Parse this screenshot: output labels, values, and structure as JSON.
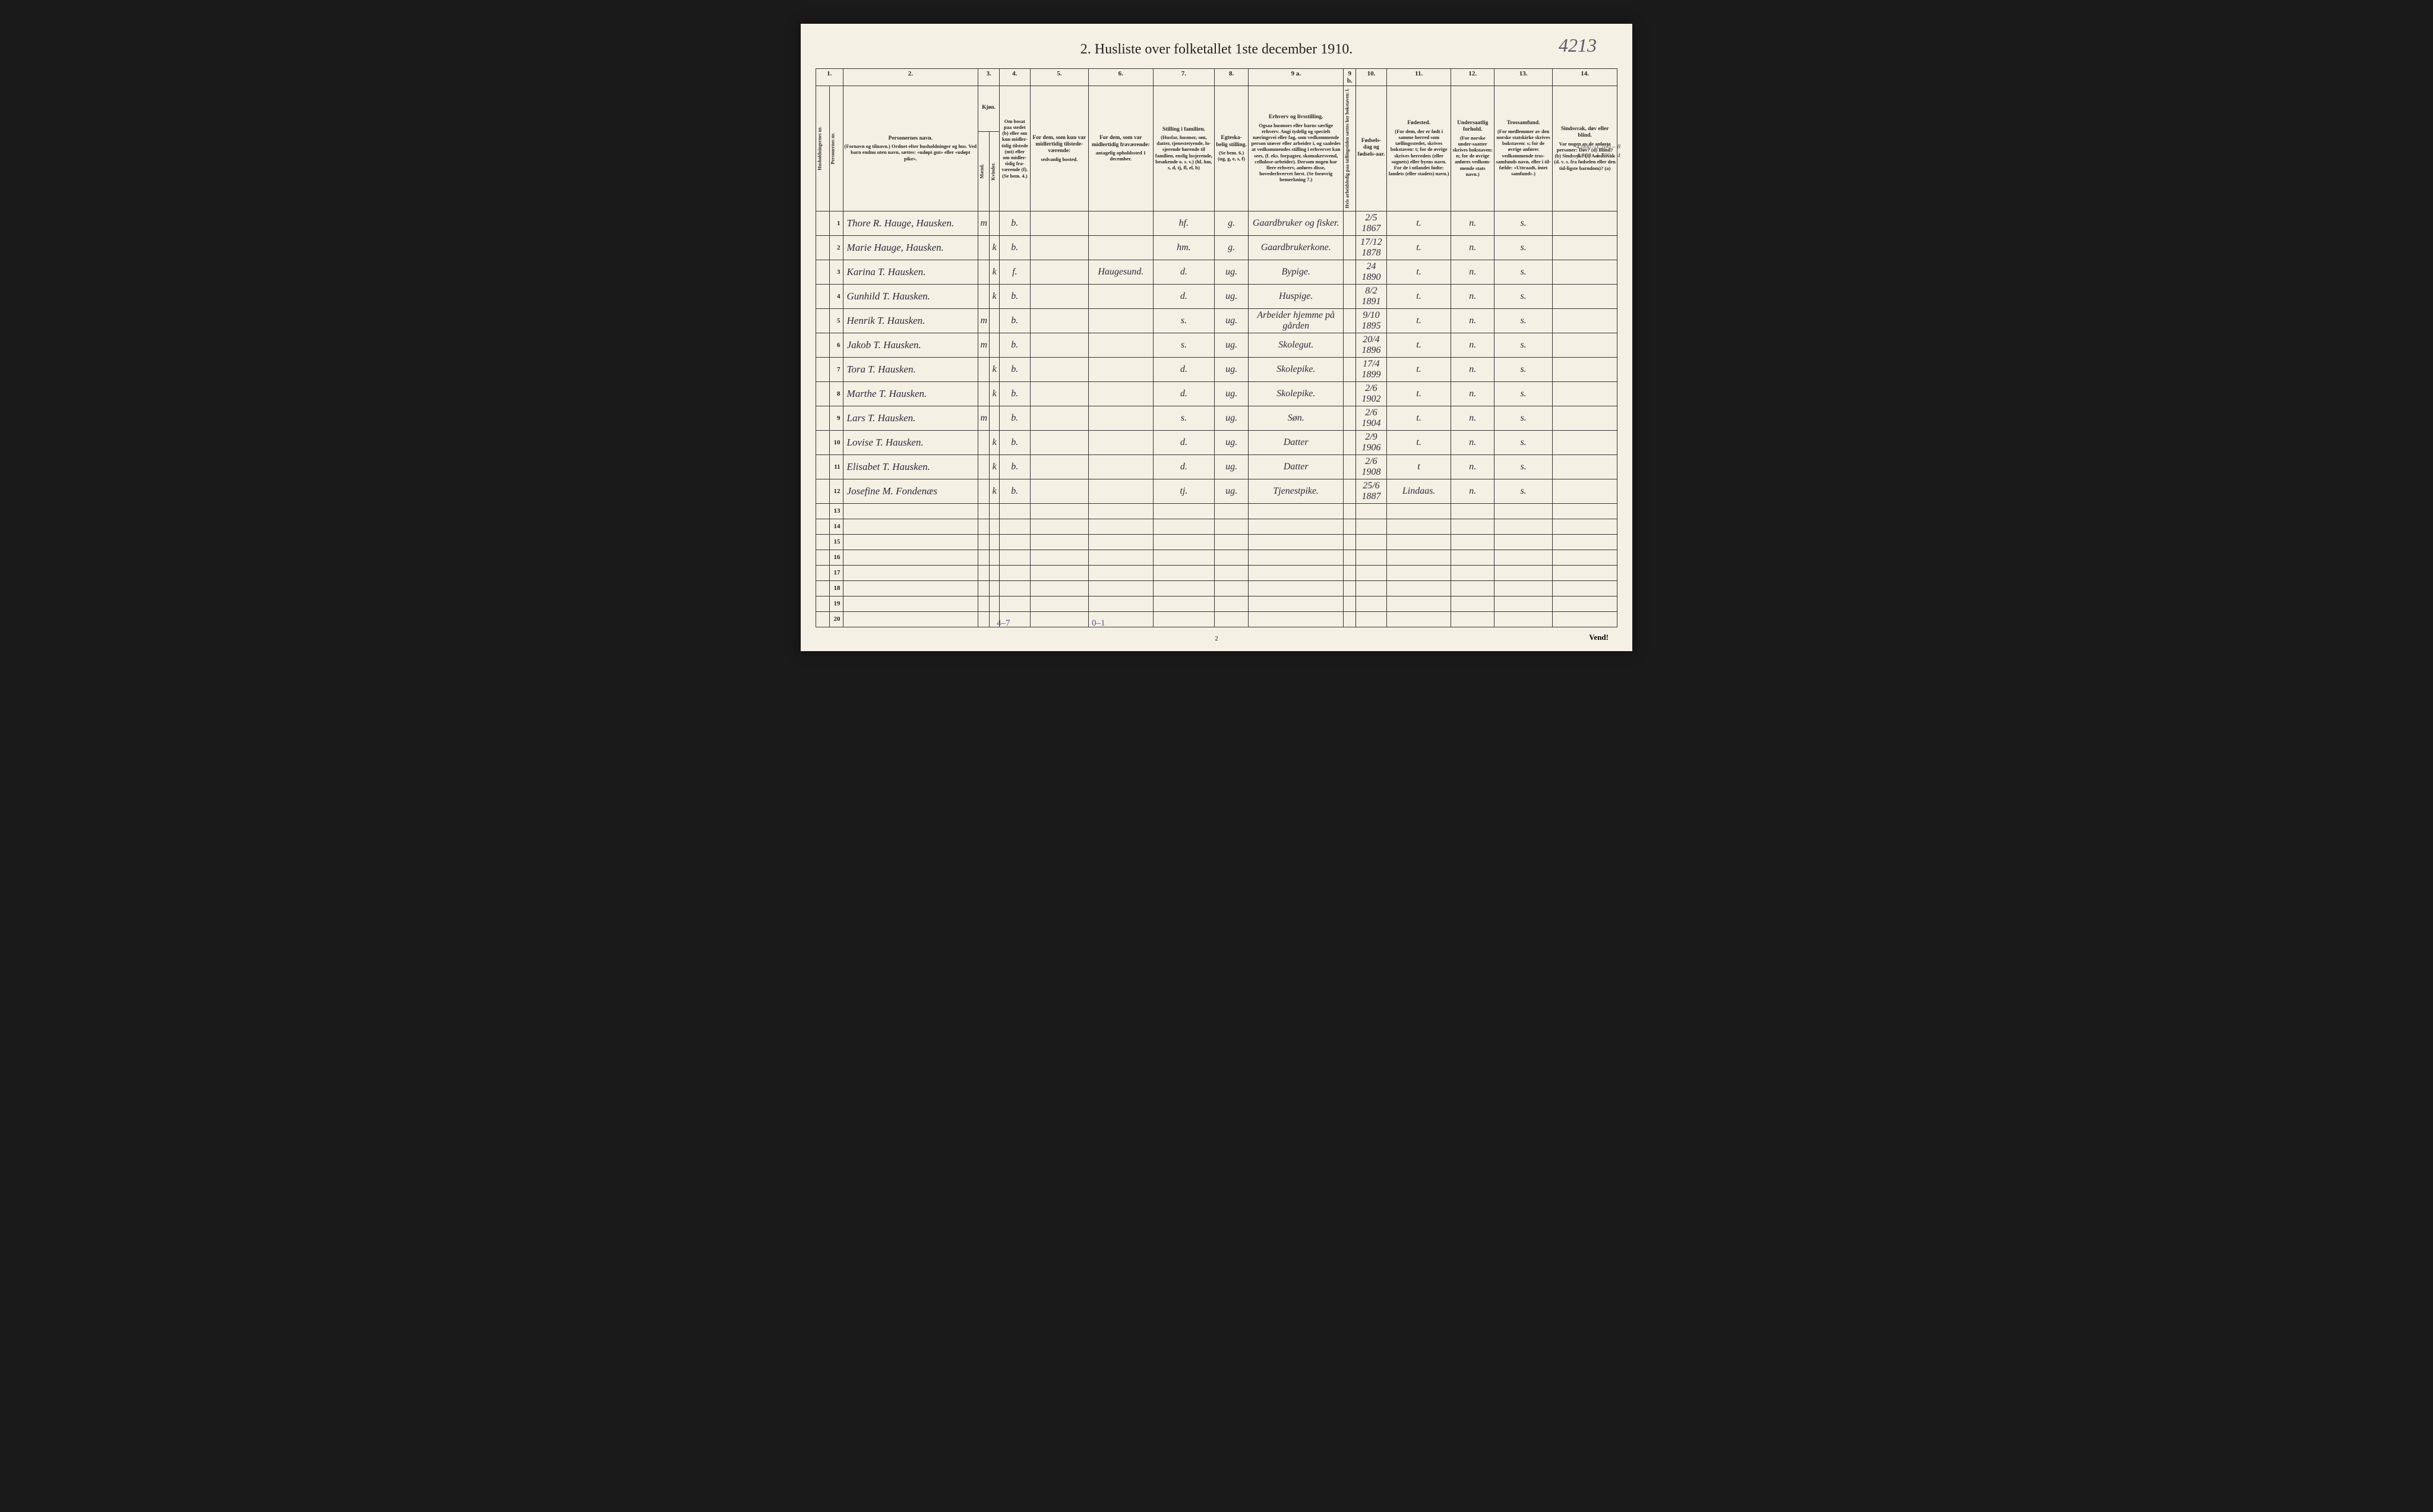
{
  "document": {
    "page_number_handwritten": "4213",
    "title": "2.   Husliste over folketallet 1ste december 1910.",
    "bottom_page_num": "2",
    "vend_label": "Vend!",
    "footer_note_left": "4–7",
    "footer_note_mid": "0–1",
    "margin_note_top": "4.000 –1.700 – 8",
    "margin_note_bottom": "4.000 –1.700 – 4"
  },
  "column_numbers": [
    "1.",
    "2.",
    "3.",
    "4.",
    "5.",
    "6.",
    "7.",
    "8.",
    "9 a.",
    "9 b.",
    "10.",
    "11.",
    "12.",
    "13.",
    "14."
  ],
  "headers": {
    "c1_vert": "Husholdningernes nr.",
    "c2_vert": "Personernes nr.",
    "c3": {
      "main": "Personernes navn.",
      "sub": "(Fornavn og tilnavn.)\nOrdnet efter husholdninger og hus.\nVed barn endnu uten navn, sættes: «udøpt gut» eller «udøpt pike»."
    },
    "c4": {
      "main": "Kjøn.",
      "m": "Mænd.",
      "k": "Kvinder.",
      "mk": "m. k."
    },
    "c5": {
      "main": "Om bosat paa stedet (b) eller om kun midler-tidig tilstede (mt) eller om midler-tidig fra-værende (f).",
      "sub": "(Se bem. 4.)"
    },
    "c6": {
      "main": "For dem, som kun var midlertidig tilstede-værende:",
      "sub": "sedvanlig bosted."
    },
    "c7": {
      "main": "For dem, som var midlertidig fraværende:",
      "sub": "antagelig opholdssted 1 december."
    },
    "c8": {
      "main": "Stilling i familien.",
      "sub": "(Husfar, husmor, søn, datter, tjenestetyende, lo-sjerende hørende til familien, enslig losjerende, besøkende o. s. v.)\n(hf, hm, s, d, tj, fl, el, b)"
    },
    "c9": {
      "main": "Egteska-belig stilling.",
      "sub": "(Se bem. 6.)\n(ug, g, e, s, f)"
    },
    "c10": {
      "main": "Erhverv og livsstilling.",
      "sub": "Ogsaa husmors eller barns særlige erhverv. Angi tydelig og specielt næringsvei eller fag, som vedkommende person utøver eller arbeider i, og saaledes at vedkommendes stilling i erhvervet kan sees, (f. eks. forpagter, skomakersvend, cellulose-arbeider). Dersom nogen har flere erhverv, anføres disse, hovederhvervet først.\n(Se forøvrig bemerkning 7.)"
    },
    "c10b_vert": "Hvis arbeidsledig paa tællingstiden sættes her bokstaven: l.",
    "c11": {
      "main": "Fødsels-dag og fødsels-aar."
    },
    "c12": {
      "main": "Fødested.",
      "sub": "(For dem, der er født i samme herred som tællingsstedet, skrives bokstaven: t; for de øvrige skrives herredets (eller sognets) eller byens navn. For de i utlandet fødte: landets (eller stadets) navn.)"
    },
    "c13": {
      "main": "Undersaatlig forhold.",
      "sub": "(For norske under-saatter skrives bokstaven: n; for de øvrige anføres vedkom-mende stats navn.)"
    },
    "c14": {
      "main": "Trossamfund.",
      "sub": "(For medlemmer av den norske statskirke skrives bokstaven: s; for de øvrige anføres vedkommende tros-samfunds navn, eller i til-fælde: «Uttraadt, intet samfund».)"
    },
    "c15": {
      "main": "Sindssvak, døv eller blind.",
      "sub": "Var nogen av de anførte personer:\nDøv?        (d)\nBlind?      (b)\nSindssyk?  (s)\nAandssvak (d. v. s. fra fødselen eller den tid-ligste barndom)?  (a)"
    }
  },
  "rows": [
    {
      "n": "1",
      "name": "Thore R. Hauge, Hausken.",
      "sex": "m",
      "res": "b.",
      "away": "",
      "absent": "",
      "fam": "hf.",
      "mar": "g.",
      "occ": "Gaardbruker og fisker.",
      "born": "2/5 1867",
      "bplace": "t.",
      "nat": "n.",
      "rel": "s."
    },
    {
      "n": "2",
      "name": "Marie Hauge, Hausken.",
      "sex": "k",
      "res": "b.",
      "away": "",
      "absent": "",
      "fam": "hm.",
      "mar": "g.",
      "occ": "Gaardbrukerkone.",
      "born": "17/12 1878",
      "bplace": "t.",
      "nat": "n.",
      "rel": "s."
    },
    {
      "n": "3",
      "name": "Karina T. Hausken.",
      "sex": "k",
      "res": "f.",
      "away": "",
      "absent": "Haugesund.",
      "fam": "d.",
      "mar": "ug.",
      "occ": "Bypige.",
      "born": "24 1890",
      "bplace": "t.",
      "nat": "n.",
      "rel": "s."
    },
    {
      "n": "4",
      "name": "Gunhild T. Hausken.",
      "sex": "k",
      "res": "b.",
      "away": "",
      "absent": "",
      "fam": "d.",
      "mar": "ug.",
      "occ": "Huspige.",
      "born": "8/2 1891",
      "bplace": "t.",
      "nat": "n.",
      "rel": "s."
    },
    {
      "n": "5",
      "name": "Henrik T. Hausken.",
      "sex": "m",
      "res": "b.",
      "away": "",
      "absent": "",
      "fam": "s.",
      "mar": "ug.",
      "occ": "Arbeider hjemme på gården",
      "born": "9/10 1895",
      "bplace": "t.",
      "nat": "n.",
      "rel": "s."
    },
    {
      "n": "6",
      "name": "Jakob T. Hausken.",
      "sex": "m",
      "res": "b.",
      "away": "",
      "absent": "",
      "fam": "s.",
      "mar": "ug.",
      "occ": "Skolegut.",
      "born": "20/4 1896",
      "bplace": "t.",
      "nat": "n.",
      "rel": "s."
    },
    {
      "n": "7",
      "name": "Tora T. Hausken.",
      "sex": "k",
      "res": "b.",
      "away": "",
      "absent": "",
      "fam": "d.",
      "mar": "ug.",
      "occ": "Skolepike.",
      "born": "17/4 1899",
      "bplace": "t.",
      "nat": "n.",
      "rel": "s."
    },
    {
      "n": "8",
      "name": "Marthe T. Hausken.",
      "sex": "k",
      "res": "b.",
      "away": "",
      "absent": "",
      "fam": "d.",
      "mar": "ug.",
      "occ": "Skolepike.",
      "born": "2/6 1902",
      "bplace": "t.",
      "nat": "n.",
      "rel": "s."
    },
    {
      "n": "9",
      "name": "Lars T. Hausken.",
      "sex": "m",
      "res": "b.",
      "away": "",
      "absent": "",
      "fam": "s.",
      "mar": "ug.",
      "occ": "Søn.",
      "born": "2/6 1904",
      "bplace": "t.",
      "nat": "n.",
      "rel": "s."
    },
    {
      "n": "10",
      "name": "Lovise T. Hausken.",
      "sex": "k",
      "res": "b.",
      "away": "",
      "absent": "",
      "fam": "d.",
      "mar": "ug.",
      "occ": "Datter",
      "born": "2/9 1906",
      "bplace": "t.",
      "nat": "n.",
      "rel": "s."
    },
    {
      "n": "11",
      "name": "Elisabet T. Hausken.",
      "sex": "k",
      "res": "b.",
      "away": "",
      "absent": "",
      "fam": "d.",
      "mar": "ug.",
      "occ": "Datter",
      "born": "2/6 1908",
      "bplace": "t",
      "nat": "n.",
      "rel": "s."
    },
    {
      "n": "12",
      "name": "Josefine M. Fondenæs",
      "sex": "k",
      "res": "b.",
      "away": "",
      "absent": "",
      "fam": "tj.",
      "mar": "ug.",
      "occ": "Tjenestpike.",
      "born": "25/6 1887",
      "bplace": "Lindaas.",
      "nat": "n.",
      "rel": "s."
    },
    {
      "n": "13"
    },
    {
      "n": "14"
    },
    {
      "n": "15"
    },
    {
      "n": "16"
    },
    {
      "n": "17"
    },
    {
      "n": "18"
    },
    {
      "n": "19"
    },
    {
      "n": "20"
    }
  ]
}
